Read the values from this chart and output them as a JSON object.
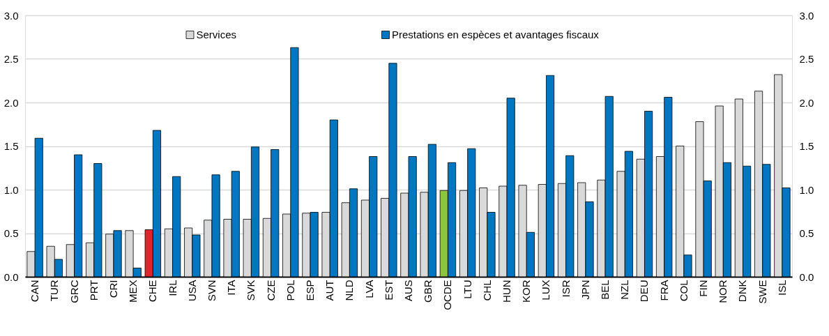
{
  "chart_data": {
    "type": "bar",
    "categories": [
      "CAN",
      "TUR",
      "GRC",
      "PRT",
      "CRI",
      "MEX",
      "CHE",
      "IRL",
      "USA",
      "SVN",
      "ITA",
      "SVK",
      "CZE",
      "POL",
      "ESP",
      "AUT",
      "NLD",
      "LVA",
      "EST",
      "AUS",
      "GBR",
      "OCDE",
      "LTU",
      "CHL",
      "HUN",
      "KOR",
      "LUX",
      "ISR",
      "JPN",
      "BEL",
      "NZL",
      "DEU",
      "FRA",
      "COL",
      "FIN",
      "NOR",
      "DNK",
      "SWE",
      "ISL"
    ],
    "series": [
      {
        "name": "Services",
        "color": "#d9d9d9",
        "colors": [
          "#d9d9d9",
          "#d9d9d9",
          "#d9d9d9",
          "#d9d9d9",
          "#d9d9d9",
          "#d9d9d9",
          "#e0242b",
          "#d9d9d9",
          "#d9d9d9",
          "#d9d9d9",
          "#d9d9d9",
          "#d9d9d9",
          "#d9d9d9",
          "#d9d9d9",
          "#d9d9d9",
          "#d9d9d9",
          "#d9d9d9",
          "#d9d9d9",
          "#d9d9d9",
          "#d9d9d9",
          "#d9d9d9",
          "#8cc63f",
          "#d9d9d9",
          "#d9d9d9",
          "#d9d9d9",
          "#d9d9d9",
          "#d9d9d9",
          "#d9d9d9",
          "#d9d9d9",
          "#d9d9d9",
          "#d9d9d9",
          "#d9d9d9",
          "#d9d9d9",
          "#d9d9d9",
          "#d9d9d9",
          "#d9d9d9",
          "#d9d9d9",
          "#d9d9d9",
          "#d9d9d9"
        ],
        "values": [
          0.29,
          0.35,
          0.37,
          0.39,
          0.49,
          0.53,
          0.54,
          0.55,
          0.56,
          0.65,
          0.66,
          0.66,
          0.67,
          0.72,
          0.73,
          0.74,
          0.85,
          0.88,
          0.9,
          0.96,
          0.97,
          0.99,
          0.99,
          1.02,
          1.04,
          1.05,
          1.06,
          1.07,
          1.08,
          1.11,
          1.21,
          1.35,
          1.38,
          1.5,
          1.78,
          1.96,
          2.04,
          2.13,
          2.32
        ]
      },
      {
        "name": "Prestations en espèces et avantages fiscaux",
        "color": "#0077c0",
        "values": [
          1.59,
          0.2,
          1.4,
          1.3,
          0.53,
          0.1,
          1.68,
          1.15,
          0.48,
          1.17,
          1.21,
          1.49,
          1.46,
          2.63,
          0.74,
          1.8,
          1.01,
          1.38,
          2.45,
          1.38,
          1.52,
          1.31,
          1.47,
          0.74,
          2.05,
          0.51,
          2.31,
          1.39,
          0.86,
          2.07,
          1.44,
          1.9,
          2.06,
          0.25,
          1.1,
          1.31,
          1.27,
          1.29,
          1.02
        ]
      }
    ],
    "ylim": [
      0,
      3.0
    ],
    "yticks": [
      {
        "value": 0,
        "label": "0.0"
      },
      {
        "value": 0.5,
        "label": "0.5"
      },
      {
        "value": 1,
        "label": "1.0"
      },
      {
        "value": 1.5,
        "label": "1.5"
      },
      {
        "value": 2,
        "label": "2.0"
      },
      {
        "value": 2.5,
        "label": "2.5"
      },
      {
        "value": 3,
        "label": "3.0"
      }
    ],
    "y2lim": [
      0,
      3.0
    ],
    "y2ticks": [
      {
        "value": 0,
        "label": "0.0"
      },
      {
        "value": 0.5,
        "label": "0.5"
      },
      {
        "value": 1,
        "label": "1.0"
      },
      {
        "value": 1.5,
        "label": "1.5"
      },
      {
        "value": 2,
        "label": "2.0"
      },
      {
        "value": 2.5,
        "label": "2.5"
      },
      {
        "value": 3,
        "label": "3.0"
      }
    ],
    "grid": "y",
    "legend": "top"
  }
}
